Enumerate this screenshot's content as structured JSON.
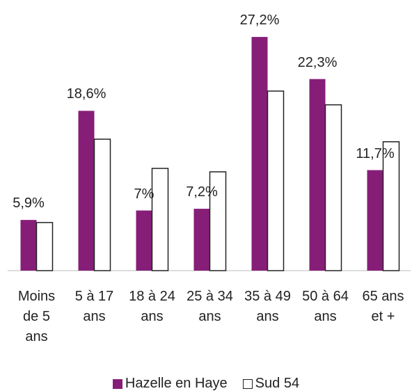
{
  "chart_data": {
    "type": "bar",
    "categories": [
      "Moins de 5 ans",
      "5 à 17 ans",
      "18 à 24 ans",
      "25 à 34 ans",
      "35 à 49 ans",
      "50 à 64 ans",
      "65 ans et +"
    ],
    "series": [
      {
        "name": "Hazelle en Haye",
        "color": "#861e78",
        "values": [
          5.9,
          18.6,
          7,
          7.2,
          27.2,
          22.3,
          11.7
        ],
        "value_labels": [
          "5,9%",
          "18,6%",
          "7%",
          "7,2%",
          "27,2%",
          "22,3%",
          "11,7%"
        ]
      },
      {
        "name": "Sud 54",
        "color": "#ffffff",
        "values": [
          5.6,
          15.3,
          11.9,
          11.5,
          20.9,
          19.3,
          15.0
        ]
      }
    ],
    "ylim": [
      0,
      31.5
    ],
    "legend": "bottom"
  }
}
